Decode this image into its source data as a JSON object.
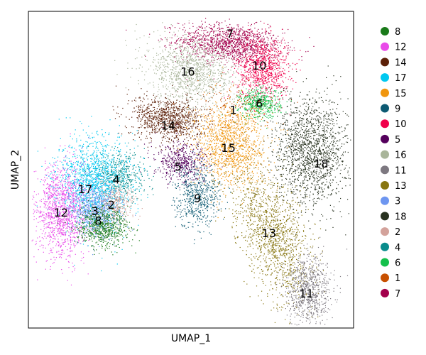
{
  "chart_data": {
    "type": "scatter",
    "title": "",
    "xlabel": "UMAP_1",
    "ylabel": "UMAP_2",
    "xlim": [
      0,
      100
    ],
    "ylim": [
      0,
      100
    ],
    "grid": false,
    "ticks": false,
    "legend_position": "right",
    "legend": [
      {
        "name": "8",
        "color": "#1a7a1a"
      },
      {
        "name": "12",
        "color": "#e94be9"
      },
      {
        "name": "14",
        "color": "#5c2008"
      },
      {
        "name": "17",
        "color": "#00c8f0"
      },
      {
        "name": "15",
        "color": "#f0960f"
      },
      {
        "name": "9",
        "color": "#0d5a73"
      },
      {
        "name": "10",
        "color": "#f0004b"
      },
      {
        "name": "5",
        "color": "#54005c"
      },
      {
        "name": "16",
        "color": "#a9b59a"
      },
      {
        "name": "11",
        "color": "#7d7880"
      },
      {
        "name": "13",
        "color": "#877510"
      },
      {
        "name": "3",
        "color": "#6e96f0"
      },
      {
        "name": "18",
        "color": "#283220"
      },
      {
        "name": "2",
        "color": "#d3a29b"
      },
      {
        "name": "4",
        "color": "#0a8c8c"
      },
      {
        "name": "6",
        "color": "#14c04b"
      },
      {
        "name": "1",
        "color": "#c85000"
      },
      {
        "name": "7",
        "color": "#a3004c"
      }
    ],
    "clusters": [
      {
        "name": "7",
        "cx": 62,
        "cy": 90,
        "sx": 8.0,
        "sy": 3.0,
        "rot": -5,
        "n": 1300
      },
      {
        "name": "10",
        "cx": 72,
        "cy": 82,
        "sx": 4.0,
        "sy": 5.0,
        "rot": 0,
        "n": 900
      },
      {
        "name": "16",
        "cx": 50,
        "cy": 81,
        "sx": 7.0,
        "sy": 5.0,
        "rot": -20,
        "n": 1200
      },
      {
        "name": "6",
        "cx": 71,
        "cy": 71,
        "sx": 3.2,
        "sy": 2.4,
        "rot": 0,
        "n": 500
      },
      {
        "name": "1",
        "cx": 63,
        "cy": 70,
        "sx": 6.0,
        "sy": 4.0,
        "rot": 0,
        "n": 150
      },
      {
        "name": "14",
        "cx": 43,
        "cy": 66,
        "sx": 5.5,
        "sy": 3.5,
        "rot": -10,
        "n": 1000
      },
      {
        "name": "15",
        "cx": 62,
        "cy": 58,
        "sx": 5.5,
        "sy": 6.5,
        "rot": 0,
        "n": 1300
      },
      {
        "name": "18",
        "cx": 87,
        "cy": 56,
        "sx": 5.5,
        "sy": 8.5,
        "rot": 0,
        "n": 1600
      },
      {
        "name": "5",
        "cx": 47,
        "cy": 52,
        "sx": 4.0,
        "sy": 3.0,
        "rot": -15,
        "n": 500
      },
      {
        "name": "9",
        "cx": 52,
        "cy": 42,
        "sx": 3.5,
        "sy": 5.0,
        "rot": 0,
        "n": 600
      },
      {
        "name": "4",
        "cx": 28,
        "cy": 48,
        "sx": 4.0,
        "sy": 4.0,
        "rot": 0,
        "n": 500
      },
      {
        "name": "17",
        "cx": 20,
        "cy": 46,
        "sx": 5.5,
        "sy": 7.0,
        "rot": 0,
        "n": 1500
      },
      {
        "name": "12",
        "cx": 10,
        "cy": 37,
        "sx": 4.0,
        "sy": 7.5,
        "rot": 0,
        "n": 1300
      },
      {
        "name": "3",
        "cx": 21,
        "cy": 37,
        "sx": 3.5,
        "sy": 4.0,
        "rot": 0,
        "n": 700
      },
      {
        "name": "2",
        "cx": 27,
        "cy": 40,
        "sx": 3.0,
        "sy": 3.0,
        "rot": 0,
        "n": 300
      },
      {
        "name": "8",
        "cx": 23,
        "cy": 32,
        "sx": 4.0,
        "sy": 3.0,
        "rot": 0,
        "n": 700
      },
      {
        "name": "13",
        "cx": 75,
        "cy": 30,
        "sx": 5.0,
        "sy": 11.0,
        "rot": 20,
        "n": 1400
      },
      {
        "name": "11",
        "cx": 86,
        "cy": 12,
        "sx": 3.5,
        "sy": 5.5,
        "rot": 0,
        "n": 800
      }
    ],
    "cluster_labels": [
      {
        "text": "7",
        "x": 62,
        "y": 93
      },
      {
        "text": "10",
        "x": 71,
        "y": 83
      },
      {
        "text": "16",
        "x": 49,
        "y": 81
      },
      {
        "text": "6",
        "x": 71,
        "y": 71
      },
      {
        "text": "1",
        "x": 63,
        "y": 69
      },
      {
        "text": "14",
        "x": 43,
        "y": 64
      },
      {
        "text": "15",
        "x": 61.5,
        "y": 57
      },
      {
        "text": "18",
        "x": 90,
        "y": 52
      },
      {
        "text": "5",
        "x": 46,
        "y": 51
      },
      {
        "text": "9",
        "x": 52,
        "y": 41
      },
      {
        "text": "4",
        "x": 27,
        "y": 47
      },
      {
        "text": "17",
        "x": 17.5,
        "y": 44
      },
      {
        "text": "2",
        "x": 25.5,
        "y": 39
      },
      {
        "text": "3",
        "x": 20.5,
        "y": 37
      },
      {
        "text": "12",
        "x": 10,
        "y": 36.5
      },
      {
        "text": "8",
        "x": 21.5,
        "y": 34
      },
      {
        "text": "13",
        "x": 74,
        "y": 30
      },
      {
        "text": "11",
        "x": 85.5,
        "y": 11
      }
    ]
  }
}
